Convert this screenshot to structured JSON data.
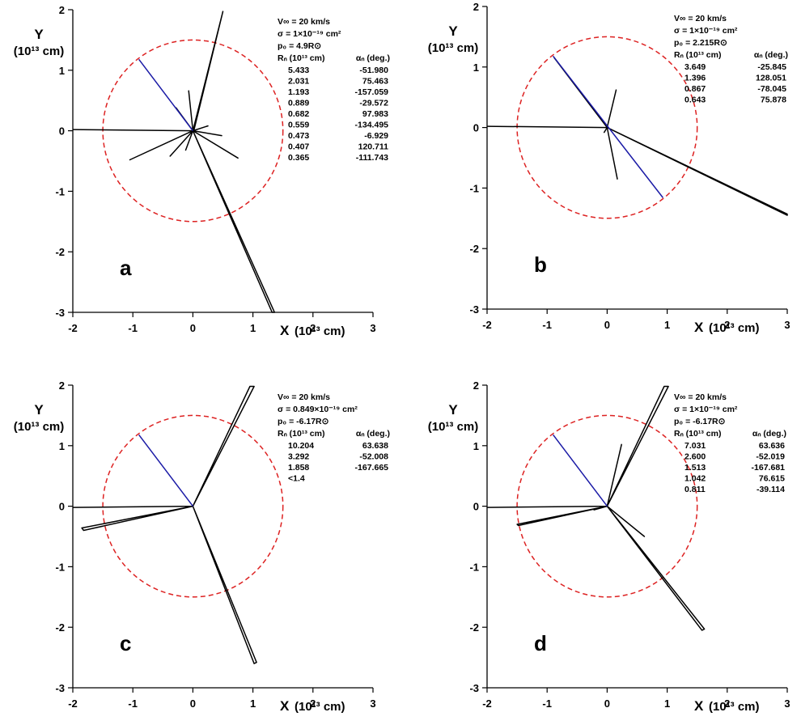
{
  "colors": {
    "axis": "#000000",
    "trajectory": "#000000",
    "line_of_sight": "#1a1aa6",
    "circle": "#dd2222"
  },
  "chart_data": [
    {
      "type": "line",
      "label": "a",
      "xlabel": "X",
      "ylabel": "Y",
      "unit": "(10¹³ cm)",
      "xlim": [
        -2,
        3
      ],
      "ylim": [
        -3,
        2
      ],
      "xticks": [
        "-2",
        "-1",
        "0",
        "1",
        "2",
        "3"
      ],
      "yticks": [
        "-3",
        "-2",
        "-1",
        "0",
        "1",
        "2"
      ],
      "circle_radius": 1.5,
      "line_of_sight": [
        [
          -0.9,
          1.18
        ],
        [
          0.0,
          0.0
        ]
      ],
      "info": [
        "V∞ = 20 km/s",
        "σ = 1×10⁻¹⁹ cm²",
        "p₀ = 4.9R⊙"
      ],
      "table_header": [
        "Rₙ (10¹³ cm)",
        "αₙ (deg.)"
      ],
      "table_rows": [
        [
          "5.433",
          "-51.980"
        ],
        [
          "2.031",
          "75.463"
        ],
        [
          "1.193",
          "-157.059"
        ],
        [
          "0.889",
          "-29.572"
        ],
        [
          "0.682",
          "97.983"
        ],
        [
          "0.559",
          "-134.495"
        ],
        [
          "0.473",
          "-6.929"
        ],
        [
          "0.407",
          "120.711"
        ],
        [
          "0.365",
          "-111.743"
        ]
      ],
      "trajectory": [
        [
          -2.0,
          0.02
        ],
        [
          0.0,
          0.0
        ],
        [
          1.32,
          -3.0
        ],
        [
          1.36,
          -3.0
        ],
        [
          0.0,
          0.0
        ],
        [
          0.5,
          1.97
        ],
        [
          0.02,
          0.02
        ],
        [
          0.5,
          1.97
        ],
        [
          0.0,
          0.0
        ],
        [
          -1.05,
          -0.48
        ],
        [
          0.0,
          0.0
        ],
        [
          0.75,
          -0.45
        ],
        [
          0.0,
          0.0
        ],
        [
          -0.28,
          0.38
        ],
        [
          0.0,
          0.0
        ],
        [
          0.48,
          -0.08
        ],
        [
          0.0,
          0.0
        ],
        [
          -0.07,
          0.66
        ],
        [
          0.0,
          0.0
        ],
        [
          -0.38,
          -0.42
        ],
        [
          0.0,
          0.0
        ],
        [
          0.25,
          0.08
        ],
        [
          0.0,
          0.0
        ],
        [
          -0.12,
          -0.32
        ],
        [
          0.0,
          0.0
        ]
      ]
    },
    {
      "type": "line",
      "label": "b",
      "xlabel": "X",
      "ylabel": "Y",
      "unit": "(10¹³ cm)",
      "xlim": [
        -2,
        3
      ],
      "ylim": [
        -3,
        2
      ],
      "xticks": [
        "-2",
        "-1",
        "0",
        "1",
        "2",
        "3"
      ],
      "yticks": [
        "-3",
        "-2",
        "-1",
        "0",
        "1",
        "2"
      ],
      "circle_radius": 1.5,
      "line_of_sight": [
        [
          -0.9,
          1.18
        ],
        [
          0.93,
          -1.16
        ]
      ],
      "info": [
        "V∞ = 20 km/s",
        "σ = 1×10⁻¹⁹ cm²",
        "p₀ = 2.215R⊙"
      ],
      "table_header": [
        "Rₙ (10¹³ cm)",
        "αₙ (deg.)"
      ],
      "table_rows": [
        [
          "3.649",
          "-25.845"
        ],
        [
          "1.396",
          "128.051"
        ],
        [
          "0.867",
          "-78.045"
        ],
        [
          "0.643",
          "75.878"
        ]
      ],
      "trajectory": [
        [
          -2.0,
          0.02
        ],
        [
          0.0,
          0.0
        ],
        [
          3.0,
          -1.45
        ],
        [
          3.0,
          -1.43
        ],
        [
          0.0,
          0.0
        ],
        [
          -0.88,
          1.15
        ],
        [
          0.0,
          0.0
        ],
        [
          0.17,
          -0.85
        ],
        [
          0.0,
          0.0
        ],
        [
          0.15,
          0.62
        ],
        [
          0.0,
          0.0
        ],
        [
          -0.05,
          -0.08
        ],
        [
          0.0,
          0.0
        ]
      ]
    },
    {
      "type": "line",
      "label": "c",
      "xlabel": "X",
      "ylabel": "Y",
      "unit": "(10¹³ cm)",
      "xlim": [
        -2,
        3
      ],
      "ylim": [
        -3,
        2
      ],
      "xticks": [
        "-2",
        "-1",
        "0",
        "1",
        "2",
        "3"
      ],
      "yticks": [
        "-3",
        "-2",
        "-1",
        "0",
        "1",
        "2"
      ],
      "circle_radius": 1.5,
      "line_of_sight": [
        [
          -0.9,
          1.18
        ],
        [
          0.0,
          0.0
        ]
      ],
      "info": [
        "V∞ = 20 km/s",
        "σ = 0.849×10⁻¹⁹ cm²",
        "p₀ = -6.17R⊙"
      ],
      "table_header": [
        "Rₙ (10¹³ cm)",
        "αₙ (deg.)"
      ],
      "table_rows": [
        [
          "10.204",
          "63.638"
        ],
        [
          "3.292",
          "-52.008"
        ],
        [
          "1.858",
          "-167.665"
        ],
        [
          "<1.4",
          ""
        ]
      ],
      "trajectory": [
        [
          -2.0,
          -0.02
        ],
        [
          0.0,
          0.0
        ],
        [
          1.02,
          -2.6
        ],
        [
          1.06,
          -2.58
        ],
        [
          0.0,
          0.0
        ],
        [
          0.95,
          1.98
        ],
        [
          1.02,
          1.98
        ],
        [
          0.0,
          0.0
        ],
        [
          -1.82,
          -0.4
        ],
        [
          -1.85,
          -0.36
        ],
        [
          0.0,
          0.0
        ]
      ]
    },
    {
      "type": "line",
      "label": "d",
      "xlabel": "X",
      "ylabel": "Y",
      "unit": "(10¹³ cm)",
      "xlim": [
        -2,
        3
      ],
      "ylim": [
        -3,
        2
      ],
      "xticks": [
        "-2",
        "-1",
        "0",
        "1",
        "2",
        "3"
      ],
      "yticks": [
        "-3",
        "-2",
        "-1",
        "0",
        "1",
        "2"
      ],
      "circle_radius": 1.5,
      "line_of_sight": [
        [
          -0.9,
          1.18
        ],
        [
          0.0,
          0.0
        ]
      ],
      "info": [
        "V∞ = 20 km/s",
        "σ = 1×10⁻¹⁹ cm²",
        "p₀ = -6.17R⊙"
      ],
      "table_header": [
        "Rₙ (10¹³ cm)",
        "αₙ (deg.)"
      ],
      "table_rows": [
        [
          "7.031",
          "63.636"
        ],
        [
          "2.600",
          "-52.019"
        ],
        [
          "1.513",
          "-167.681"
        ],
        [
          "1.042",
          "76.615"
        ],
        [
          "0.811",
          "-39.114"
        ]
      ],
      "trajectory": [
        [
          -2.0,
          -0.02
        ],
        [
          0.0,
          0.0
        ],
        [
          1.58,
          -2.05
        ],
        [
          1.62,
          -2.03
        ],
        [
          0.0,
          0.0
        ],
        [
          0.95,
          1.98
        ],
        [
          1.02,
          1.98
        ],
        [
          0.0,
          0.0
        ],
        [
          -1.48,
          -0.32
        ],
        [
          -1.5,
          -0.3
        ],
        [
          0.0,
          0.0
        ],
        [
          0.62,
          -0.5
        ],
        [
          0.0,
          0.0
        ],
        [
          0.24,
          1.02
        ],
        [
          0.0,
          0.0
        ],
        [
          -0.22,
          -0.06
        ],
        [
          0.0,
          0.0
        ]
      ]
    }
  ]
}
